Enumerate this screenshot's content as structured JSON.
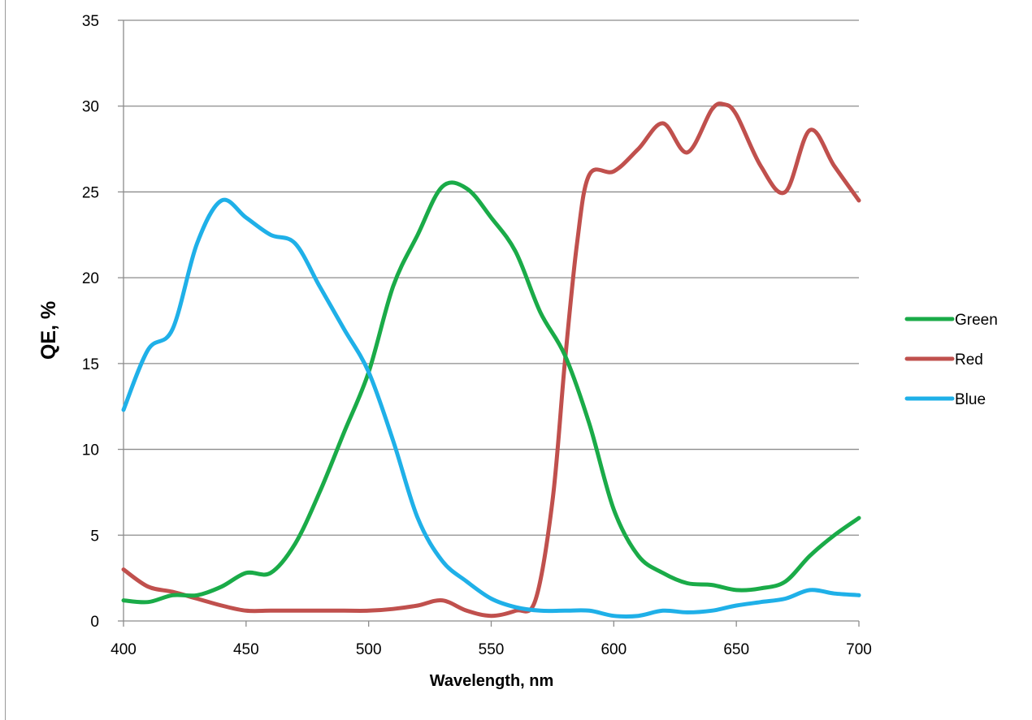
{
  "chart_data": {
    "type": "line",
    "xlabel": "Wavelength, nm",
    "ylabel": "QE, %",
    "xlim": [
      400,
      700
    ],
    "ylim": [
      0,
      35
    ],
    "x_ticks": [
      400,
      450,
      500,
      550,
      600,
      650,
      700
    ],
    "y_ticks": [
      0,
      5,
      10,
      15,
      20,
      25,
      30,
      35
    ],
    "grid": "horizontal",
    "legend_position": "right",
    "series": [
      {
        "name": "Green",
        "color": "#1aab48",
        "points": [
          [
            400,
            1.2
          ],
          [
            410,
            1.1
          ],
          [
            420,
            1.5
          ],
          [
            430,
            1.5
          ],
          [
            440,
            2.0
          ],
          [
            450,
            2.8
          ],
          [
            460,
            2.8
          ],
          [
            470,
            4.5
          ],
          [
            480,
            7.5
          ],
          [
            490,
            11.0
          ],
          [
            500,
            14.5
          ],
          [
            510,
            19.5
          ],
          [
            520,
            22.5
          ],
          [
            530,
            25.3
          ],
          [
            540,
            25.2
          ],
          [
            550,
            23.5
          ],
          [
            560,
            21.5
          ],
          [
            570,
            18.0
          ],
          [
            580,
            15.5
          ],
          [
            590,
            11.5
          ],
          [
            600,
            6.5
          ],
          [
            610,
            3.8
          ],
          [
            620,
            2.8
          ],
          [
            630,
            2.2
          ],
          [
            640,
            2.1
          ],
          [
            650,
            1.8
          ],
          [
            660,
            1.9
          ],
          [
            670,
            2.3
          ],
          [
            680,
            3.8
          ],
          [
            690,
            5.0
          ],
          [
            700,
            6.0
          ]
        ]
      },
      {
        "name": "Red",
        "color": "#c0504d",
        "points": [
          [
            400,
            3.0
          ],
          [
            410,
            2.0
          ],
          [
            420,
            1.7
          ],
          [
            430,
            1.3
          ],
          [
            440,
            0.9
          ],
          [
            450,
            0.6
          ],
          [
            460,
            0.6
          ],
          [
            470,
            0.6
          ],
          [
            480,
            0.6
          ],
          [
            490,
            0.6
          ],
          [
            500,
            0.6
          ],
          [
            510,
            0.7
          ],
          [
            520,
            0.9
          ],
          [
            530,
            1.2
          ],
          [
            540,
            0.6
          ],
          [
            550,
            0.3
          ],
          [
            560,
            0.6
          ],
          [
            568,
            1.2
          ],
          [
            575,
            7.0
          ],
          [
            580,
            15.0
          ],
          [
            585,
            22.0
          ],
          [
            590,
            26.0
          ],
          [
            600,
            26.2
          ],
          [
            610,
            27.5
          ],
          [
            620,
            29.0
          ],
          [
            630,
            27.3
          ],
          [
            640,
            29.8
          ],
          [
            645,
            30.1
          ],
          [
            650,
            29.5
          ],
          [
            660,
            26.5
          ],
          [
            670,
            25.0
          ],
          [
            680,
            28.6
          ],
          [
            690,
            26.5
          ],
          [
            700,
            24.5
          ]
        ]
      },
      {
        "name": "Blue",
        "color": "#1fb0e8",
        "points": [
          [
            400,
            12.3
          ],
          [
            410,
            15.8
          ],
          [
            420,
            17.0
          ],
          [
            430,
            22.0
          ],
          [
            440,
            24.5
          ],
          [
            450,
            23.5
          ],
          [
            460,
            22.5
          ],
          [
            470,
            22.0
          ],
          [
            480,
            19.5
          ],
          [
            490,
            17.0
          ],
          [
            500,
            14.5
          ],
          [
            510,
            10.5
          ],
          [
            520,
            6.0
          ],
          [
            530,
            3.5
          ],
          [
            540,
            2.3
          ],
          [
            550,
            1.3
          ],
          [
            560,
            0.8
          ],
          [
            570,
            0.6
          ],
          [
            580,
            0.6
          ],
          [
            590,
            0.6
          ],
          [
            600,
            0.3
          ],
          [
            610,
            0.3
          ],
          [
            620,
            0.6
          ],
          [
            630,
            0.5
          ],
          [
            640,
            0.6
          ],
          [
            650,
            0.9
          ],
          [
            660,
            1.1
          ],
          [
            670,
            1.3
          ],
          [
            680,
            1.8
          ],
          [
            690,
            1.6
          ],
          [
            700,
            1.5
          ]
        ]
      }
    ]
  }
}
